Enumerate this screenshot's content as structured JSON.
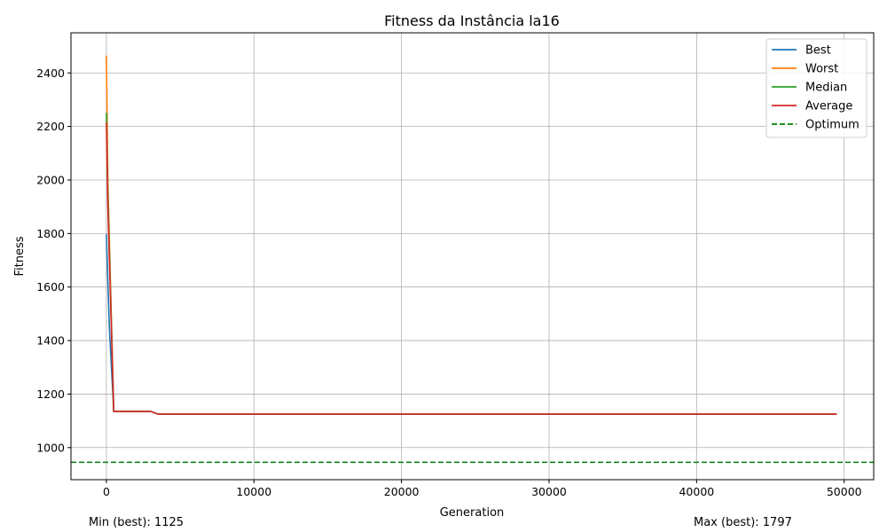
{
  "chart_data": {
    "type": "line",
    "title": "Fitness da Instância la16",
    "xlabel": "Generation",
    "ylabel": "Fitness",
    "xlim": [
      -2400,
      52000
    ],
    "ylim": [
      880,
      2550
    ],
    "xticks": [
      0,
      10000,
      20000,
      30000,
      40000,
      50000
    ],
    "yticks": [
      1000,
      1200,
      1400,
      1600,
      1800,
      2000,
      2200,
      2400
    ],
    "grid": true,
    "legend_position": "top-right",
    "series": [
      {
        "name": "Best",
        "color": "#1f77b4",
        "dashed": false,
        "x": [
          0,
          200,
          500,
          3000,
          3500,
          49500
        ],
        "y": [
          1797,
          1450,
          1135,
          1135,
          1125,
          1125
        ]
      },
      {
        "name": "Worst",
        "color": "#ff7f0e",
        "dashed": false,
        "x": [
          0,
          100,
          500,
          3000,
          3500,
          49500
        ],
        "y": [
          2465,
          2000,
          1135,
          1135,
          1125,
          1125
        ]
      },
      {
        "name": "Median",
        "color": "#2ca02c",
        "dashed": false,
        "x": [
          0,
          100,
          500,
          3000,
          3500,
          49500
        ],
        "y": [
          2250,
          1950,
          1135,
          1135,
          1125,
          1125
        ]
      },
      {
        "name": "Average",
        "color": "#d62728",
        "dashed": false,
        "x": [
          0,
          100,
          500,
          3000,
          3500,
          49500
        ],
        "y": [
          2215,
          1900,
          1135,
          1135,
          1125,
          1125
        ]
      },
      {
        "name": "Optimum",
        "color": "#008000",
        "dashed": true,
        "x": [
          -2400,
          52000
        ],
        "y": [
          945,
          945
        ]
      }
    ]
  },
  "footer": {
    "min_best": "Min (best): 1125",
    "max_best": "Max (best): 1797"
  }
}
